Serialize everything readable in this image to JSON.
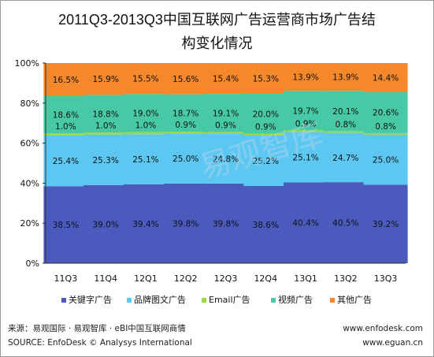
{
  "chart_data": {
    "type": "stacked-bar",
    "title_line1": "2011Q3-2013Q3中国互联网广告运营商市场广告结",
    "title_line2": "构变化情况",
    "categories": [
      "11Q3",
      "11Q4",
      "12Q1",
      "12Q2",
      "12Q3",
      "12Q4",
      "13Q1",
      "13Q2",
      "13Q3"
    ],
    "series": [
      {
        "name": "关键字广告",
        "color": "#4a5bbd",
        "values": [
          38.5,
          39.0,
          39.4,
          39.8,
          39.8,
          38.6,
          40.4,
          40.5,
          39.2
        ],
        "labels": [
          "38.5%",
          "39.0%",
          "39.4%",
          "39.8%",
          "39.8%",
          "38.6%",
          "40.4%",
          "40.5%",
          "39.2%"
        ]
      },
      {
        "name": "品牌图文广告",
        "color": "#5cc8f2",
        "values": [
          25.4,
          25.3,
          25.1,
          25.0,
          24.8,
          25.2,
          25.1,
          24.7,
          25.0
        ],
        "labels": [
          "25.4%",
          "25.3%",
          "25.1%",
          "25.0%",
          "24.8%",
          "25.2%",
          "25.1%",
          "24.7%",
          "25.0%"
        ]
      },
      {
        "name": "Email广告",
        "color": "#9bd644",
        "values": [
          1.0,
          1.0,
          1.0,
          0.9,
          0.9,
          0.9,
          0.9,
          0.8,
          0.8
        ],
        "labels": [
          "1.0%",
          "1.0%",
          "1.0%",
          "0.9%",
          "0.9%",
          "0.9%",
          "0.9%",
          "0.8%",
          "0.8%"
        ]
      },
      {
        "name": "视频广告",
        "color": "#48c9a6",
        "values": [
          18.6,
          18.8,
          19.0,
          18.7,
          19.1,
          20.0,
          19.7,
          20.1,
          20.6
        ],
        "labels": [
          "18.6%",
          "18.8%",
          "19.0%",
          "18.7%",
          "19.1%",
          "20.0%",
          "19.7%",
          "20.1%",
          "20.6%"
        ]
      },
      {
        "name": "其他广告",
        "color": "#f5882a",
        "values": [
          16.5,
          15.9,
          15.5,
          15.6,
          15.4,
          15.3,
          13.9,
          13.9,
          14.4
        ],
        "labels": [
          "16.5%",
          "15.9%",
          "15.5%",
          "15.6%",
          "15.4%",
          "15.3%",
          "13.9%",
          "13.9%",
          "14.4%"
        ]
      }
    ],
    "yticks": [
      "0%",
      "20%",
      "40%",
      "60%",
      "80%",
      "100%"
    ],
    "ylim": [
      0,
      100
    ],
    "grid": false,
    "legend": "bottom"
  },
  "footer": {
    "source_cn": "来源：易观国际 · 易观智库 · eBI中国互联网商情",
    "source_en": "SOURCE: EnfoDesk © Analysys International",
    "url1": "www.enfodesk.com",
    "url2": "www.eguan.cn"
  },
  "watermark": "易观智库"
}
